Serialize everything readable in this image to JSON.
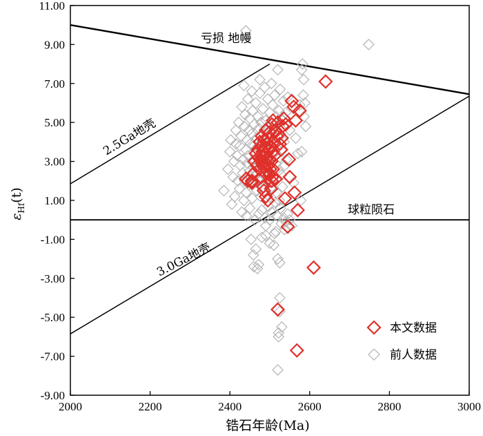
{
  "chart_data": {
    "type": "scatter",
    "xlabel": "锆石年龄(Ma)",
    "ylabel_main": "ε",
    "ylabel_sub": "Hf",
    "ylabel_tail": "(t)",
    "xlim": [
      2000,
      3000
    ],
    "ylim": [
      -9,
      11
    ],
    "x_ticks": [
      2000,
      2200,
      2400,
      2600,
      2800,
      3000
    ],
    "x_tick_labels": [
      "2000",
      "2200",
      "2400",
      "2600",
      "2800",
      "3000"
    ],
    "y_ticks": [
      -9,
      -7,
      -5,
      -3,
      -1,
      1,
      3,
      5,
      7,
      9,
      11
    ],
    "y_tick_labels": [
      "-9.00",
      "-7.00",
      "-5.00",
      "-3.00",
      "-1.00",
      "1.00",
      "3.00",
      "5.00",
      "7.00",
      "9.00",
      "11.00"
    ],
    "reference_lines": [
      {
        "name": "depleted-mantle",
        "label": "亏损 地幔",
        "x": [
          2000,
          3000
        ],
        "y": [
          10.0,
          6.45
        ]
      },
      {
        "name": "crust-2.5ga",
        "label": "2.5Ga地壳",
        "x": [
          2000,
          2500
        ],
        "y": [
          1.85,
          8.0
        ]
      },
      {
        "name": "crust-3.0ga",
        "label": "3.0Ga地壳",
        "x": [
          2000,
          3000
        ],
        "y": [
          -5.85,
          6.35
        ]
      },
      {
        "name": "chondrite",
        "label": "球粒陨石",
        "x": [
          2000,
          3000
        ],
        "y": [
          0.0,
          0.0
        ]
      }
    ],
    "series": [
      {
        "name": "本文数据",
        "color": "#e0302a",
        "points": [
          [
            2440,
            2.1
          ],
          [
            2445,
            2.0
          ],
          [
            2455,
            1.9
          ],
          [
            2460,
            2.4
          ],
          [
            2462,
            3.0
          ],
          [
            2465,
            3.4
          ],
          [
            2468,
            2.8
          ],
          [
            2470,
            3.6
          ],
          [
            2472,
            3.2
          ],
          [
            2474,
            2.6
          ],
          [
            2475,
            4.0
          ],
          [
            2476,
            3.1
          ],
          [
            2478,
            2.2
          ],
          [
            2479,
            3.8
          ],
          [
            2480,
            4.3
          ],
          [
            2481,
            2.9
          ],
          [
            2482,
            3.5
          ],
          [
            2483,
            1.7
          ],
          [
            2484,
            3.3
          ],
          [
            2485,
            2.7
          ],
          [
            2486,
            4.1
          ],
          [
            2487,
            3.0
          ],
          [
            2488,
            2.4
          ],
          [
            2489,
            3.7
          ],
          [
            2490,
            1.2
          ],
          [
            2490,
            4.6
          ],
          [
            2491,
            3.4
          ],
          [
            2492,
            2.9
          ],
          [
            2493,
            3.9
          ],
          [
            2494,
            2.5
          ],
          [
            2495,
            3.2
          ],
          [
            2495,
            1.0
          ],
          [
            2496,
            4.2
          ],
          [
            2497,
            2.8
          ],
          [
            2498,
            3.6
          ],
          [
            2499,
            2.3
          ],
          [
            2500,
            3.1
          ],
          [
            2500,
            4.5
          ],
          [
            2501,
            2.6
          ],
          [
            2502,
            3.8
          ],
          [
            2503,
            1.6
          ],
          [
            2504,
            3.0
          ],
          [
            2505,
            4.9
          ],
          [
            2506,
            2.2
          ],
          [
            2507,
            3.5
          ],
          [
            2508,
            5.1
          ],
          [
            2510,
            4.0
          ],
          [
            2512,
            3.3
          ],
          [
            2514,
            4.6
          ],
          [
            2515,
            2.1
          ],
          [
            2518,
            4.3
          ],
          [
            2520,
            5.0
          ],
          [
            2522,
            4.4
          ],
          [
            2525,
            3.9
          ],
          [
            2528,
            3.6
          ],
          [
            2530,
            4.2
          ],
          [
            2532,
            4.8
          ],
          [
            2535,
            5.2
          ],
          [
            2538,
            1.1
          ],
          [
            2540,
            4.9
          ],
          [
            2545,
            -0.35
          ],
          [
            2548,
            3.1
          ],
          [
            2550,
            2.2
          ],
          [
            2555,
            6.1
          ],
          [
            2560,
            5.8
          ],
          [
            2562,
            1.4
          ],
          [
            2565,
            5.1
          ],
          [
            2570,
            0.5
          ],
          [
            2575,
            5.6
          ],
          [
            2520,
            -4.6
          ],
          [
            2568,
            -6.7
          ],
          [
            2610,
            -2.45
          ],
          [
            2640,
            7.1
          ],
          [
            2455,
            2.0
          ],
          [
            2485,
            1.5
          ],
          [
            2505,
            2.0
          ],
          [
            2508,
            2.6
          ],
          [
            2480,
            3.0
          ],
          [
            2500,
            3.6
          ]
        ]
      },
      {
        "name": "前人数据",
        "color": "#b4b4b4",
        "points": [
          [
            2385,
            1.5
          ],
          [
            2395,
            2.6
          ],
          [
            2400,
            3.5
          ],
          [
            2402,
            4.1
          ],
          [
            2405,
            0.8
          ],
          [
            2408,
            2.2
          ],
          [
            2410,
            3.0
          ],
          [
            2412,
            1.2
          ],
          [
            2415,
            4.6
          ],
          [
            2418,
            3.3
          ],
          [
            2420,
            2.0
          ],
          [
            2422,
            5.0
          ],
          [
            2424,
            1.6
          ],
          [
            2425,
            3.8
          ],
          [
            2426,
            2.8
          ],
          [
            2428,
            4.3
          ],
          [
            2430,
            0.4
          ],
          [
            2430,
            5.8
          ],
          [
            2432,
            2.4
          ],
          [
            2433,
            3.1
          ],
          [
            2435,
            1.0
          ],
          [
            2436,
            4.8
          ],
          [
            2437,
            2.0
          ],
          [
            2438,
            5.4
          ],
          [
            2440,
            3.6
          ],
          [
            2440,
            9.7
          ],
          [
            2441,
            1.4
          ],
          [
            2442,
            0.2
          ],
          [
            2443,
            4.1
          ],
          [
            2444,
            2.9
          ],
          [
            2445,
            6.2
          ],
          [
            2446,
            3.3
          ],
          [
            2447,
            1.8
          ],
          [
            2448,
            4.6
          ],
          [
            2449,
            2.5
          ],
          [
            2450,
            0.6
          ],
          [
            2450,
            5.2
          ],
          [
            2451,
            3.9
          ],
          [
            2452,
            2.2
          ],
          [
            2453,
            -1.0
          ],
          [
            2454,
            4.4
          ],
          [
            2455,
            3.0
          ],
          [
            2456,
            1.1
          ],
          [
            2457,
            5.6
          ],
          [
            2458,
            2.7
          ],
          [
            2459,
            -1.8
          ],
          [
            2460,
            3.8
          ],
          [
            2460,
            -2.4
          ],
          [
            2461,
            4.9
          ],
          [
            2462,
            1.9
          ],
          [
            2463,
            0.0
          ],
          [
            2464,
            3.4
          ],
          [
            2465,
            6.0
          ],
          [
            2466,
            2.3
          ],
          [
            2467,
            4.2
          ],
          [
            2468,
            1.5
          ],
          [
            2469,
            -2.5
          ],
          [
            2470,
            5.3
          ],
          [
            2471,
            3.1
          ],
          [
            2472,
            0.3
          ],
          [
            2473,
            4.7
          ],
          [
            2474,
            2.0
          ],
          [
            2475,
            6.5
          ],
          [
            2476,
            3.6
          ],
          [
            2477,
            1.2
          ],
          [
            2478,
            5.0
          ],
          [
            2479,
            2.6
          ],
          [
            2480,
            0.5
          ],
          [
            2480,
            -0.9
          ],
          [
            2481,
            4.0
          ],
          [
            2482,
            3.2
          ],
          [
            2483,
            5.7
          ],
          [
            2484,
            1.7
          ],
          [
            2485,
            4.4
          ],
          [
            2486,
            2.4
          ],
          [
            2487,
            6.8
          ],
          [
            2488,
            0.1
          ],
          [
            2489,
            3.5
          ],
          [
            2490,
            5.1
          ],
          [
            2490,
            -0.3
          ],
          [
            2491,
            2.0
          ],
          [
            2492,
            4.6
          ],
          [
            2493,
            1.3
          ],
          [
            2494,
            3.9
          ],
          [
            2495,
            6.2
          ],
          [
            2496,
            2.8
          ],
          [
            2497,
            0.7
          ],
          [
            2498,
            4.8
          ],
          [
            2499,
            3.3
          ],
          [
            2500,
            5.5
          ],
          [
            2500,
            0.0
          ],
          [
            2501,
            1.9
          ],
          [
            2502,
            4.2
          ],
          [
            2503,
            2.6
          ],
          [
            2504,
            7.0
          ],
          [
            2505,
            0.4
          ],
          [
            2506,
            3.7
          ],
          [
            2507,
            5.9
          ],
          [
            2508,
            1.6
          ],
          [
            2509,
            4.5
          ],
          [
            2510,
            2.2
          ],
          [
            2510,
            -1.3
          ],
          [
            2511,
            3.4
          ],
          [
            2512,
            6.4
          ],
          [
            2513,
            0.9
          ],
          [
            2514,
            4.9
          ],
          [
            2515,
            2.9
          ],
          [
            2515,
            -0.6
          ],
          [
            2516,
            5.3
          ],
          [
            2517,
            1.4
          ],
          [
            2518,
            3.8
          ],
          [
            2519,
            0.2
          ],
          [
            2520,
            7.7
          ],
          [
            2520,
            -2.0
          ],
          [
            2521,
            4.3
          ],
          [
            2522,
            2.5
          ],
          [
            2522,
            -6.0
          ],
          [
            2523,
            5.6
          ],
          [
            2524,
            1.0
          ],
          [
            2525,
            3.2
          ],
          [
            2525,
            -4.0
          ],
          [
            2526,
            6.7
          ],
          [
            2527,
            0.6
          ],
          [
            2528,
            4.7
          ],
          [
            2529,
            -0.2
          ],
          [
            2530,
            2.3
          ],
          [
            2530,
            -5.5
          ],
          [
            2531,
            5.1
          ],
          [
            2532,
            1.7
          ],
          [
            2533,
            3.6
          ],
          [
            2534,
            6.1
          ],
          [
            2535,
            0.1
          ],
          [
            2536,
            4.0
          ],
          [
            2537,
            -0.5
          ],
          [
            2538,
            2.8
          ],
          [
            2540,
            5.5
          ],
          [
            2540,
            -0.1
          ],
          [
            2542,
            3.1
          ],
          [
            2545,
            0.3
          ],
          [
            2545,
            6.3
          ],
          [
            2550,
            4.6
          ],
          [
            2550,
            0.0
          ],
          [
            2555,
            -0.3
          ],
          [
            2560,
            1.9
          ],
          [
            2565,
            4.2
          ],
          [
            2570,
            3.4
          ],
          [
            2575,
            5.9
          ],
          [
            2578,
            1.0
          ],
          [
            2580,
            3.5
          ],
          [
            2580,
            7.7
          ],
          [
            2582,
            8.0
          ],
          [
            2584,
            6.4
          ],
          [
            2585,
            7.2
          ],
          [
            2586,
            5.3
          ],
          [
            2588,
            6.0
          ],
          [
            2590,
            4.8
          ],
          [
            2520,
            -7.7
          ],
          [
            2525,
            -2.2
          ],
          [
            2522,
            -5.8
          ],
          [
            2525,
            -4.7
          ],
          [
            2748,
            9.0
          ],
          [
            2465,
            -1.5
          ],
          [
            2472,
            -2.3
          ],
          [
            2490,
            -0.8
          ],
          [
            2500,
            -1.2
          ],
          [
            2512,
            -0.7
          ],
          [
            2415,
            3.9
          ],
          [
            2435,
            6.9
          ],
          [
            2455,
            6.6
          ],
          [
            2475,
            7.2
          ]
        ]
      }
    ],
    "legend": [
      {
        "label": "本文数据",
        "series": 0
      },
      {
        "label": "前人数据",
        "series": 1
      }
    ],
    "legend_position": "bottom-right"
  }
}
